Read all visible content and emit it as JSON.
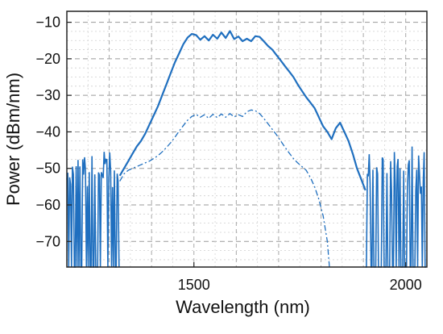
{
  "chart_data": {
    "type": "line",
    "title": "",
    "xlabel": "Wavelength (nm)",
    "ylabel": "Power (dBm/nm)",
    "xlim": [
      1200,
      2050
    ],
    "ylim": [
      -77,
      -7
    ],
    "xticks": [
      1500,
      2000
    ],
    "xtick_labels": [
      "1500",
      "2000"
    ],
    "yticks": [
      -10,
      -20,
      -30,
      -40,
      -50,
      -60,
      -70
    ],
    "ytick_labels": [
      "-10",
      "-20",
      "-30",
      "-40",
      "-50",
      "-60",
      "-70"
    ],
    "grid": true,
    "legend": "none",
    "series": [
      {
        "style": "solid",
        "color": "#1f6fbf",
        "x": [
          1325,
          1335,
          1345,
          1355,
          1365,
          1375,
          1385,
          1395,
          1405,
          1415,
          1425,
          1435,
          1445,
          1455,
          1465,
          1475,
          1485,
          1495,
          1505,
          1515,
          1525,
          1535,
          1545,
          1555,
          1565,
          1575,
          1585,
          1595,
          1605,
          1615,
          1625,
          1635,
          1645,
          1655,
          1665,
          1675,
          1685,
          1695,
          1705,
          1715,
          1725,
          1735,
          1745,
          1755,
          1765,
          1775,
          1785,
          1795,
          1805,
          1815,
          1825,
          1835,
          1845,
          1855,
          1865,
          1875,
          1885,
          1895,
          1905
        ],
        "y": [
          -52,
          -50,
          -48,
          -46,
          -44,
          -42.5,
          -40.5,
          -38,
          -35.5,
          -33,
          -30,
          -27,
          -24,
          -21,
          -18.5,
          -16,
          -14.2,
          -13.2,
          -13.5,
          -14.8,
          -13.8,
          -15,
          -13.4,
          -14.5,
          -12.8,
          -14.3,
          -12.4,
          -14.6,
          -13.9,
          -15.2,
          -14.5,
          -15.2,
          -13.8,
          -14,
          -15.2,
          -16.5,
          -17.5,
          -19,
          -20.5,
          -22,
          -23.5,
          -25,
          -27,
          -28.8,
          -30.5,
          -32,
          -33.5,
          -36,
          -38.5,
          -40,
          -42,
          -39,
          -37.5,
          -40,
          -42.5,
          -46,
          -50,
          -53,
          -56
        ]
      },
      {
        "style": "dashdot",
        "color": "#1f6fbf",
        "x": [
          1325,
          1335,
          1345,
          1355,
          1365,
          1375,
          1385,
          1395,
          1405,
          1415,
          1425,
          1435,
          1445,
          1455,
          1465,
          1475,
          1485,
          1495,
          1505,
          1515,
          1525,
          1535,
          1545,
          1555,
          1565,
          1575,
          1585,
          1595,
          1605,
          1615,
          1625,
          1635,
          1645,
          1655,
          1665,
          1675,
          1685,
          1695,
          1705,
          1715,
          1725,
          1735,
          1745,
          1755,
          1765,
          1775,
          1785,
          1795,
          1805,
          1815,
          1820
        ],
        "y": [
          -53.5,
          -51.5,
          -50.5,
          -50,
          -49.5,
          -49,
          -48.5,
          -48,
          -47.3,
          -46.5,
          -45.5,
          -44.3,
          -43,
          -41.5,
          -39.8,
          -38.3,
          -36.8,
          -35.8,
          -35.2,
          -36,
          -35.3,
          -36.3,
          -35.2,
          -36.1,
          -35.1,
          -36,
          -35,
          -35.9,
          -35.3,
          -35.8,
          -34.5,
          -34,
          -34.2,
          -35,
          -36.3,
          -37.8,
          -39.3,
          -40.8,
          -42.5,
          -44.2,
          -45.8,
          -47.3,
          -48.5,
          -49.5,
          -50.5,
          -52.5,
          -55,
          -58.5,
          -63,
          -70,
          -77
        ]
      }
    ],
    "noise_floor_bands": [
      [
        1200,
        1325
      ],
      [
        1905,
        2050
      ]
    ],
    "noise_floor_range": [
      -77,
      -46
    ]
  }
}
